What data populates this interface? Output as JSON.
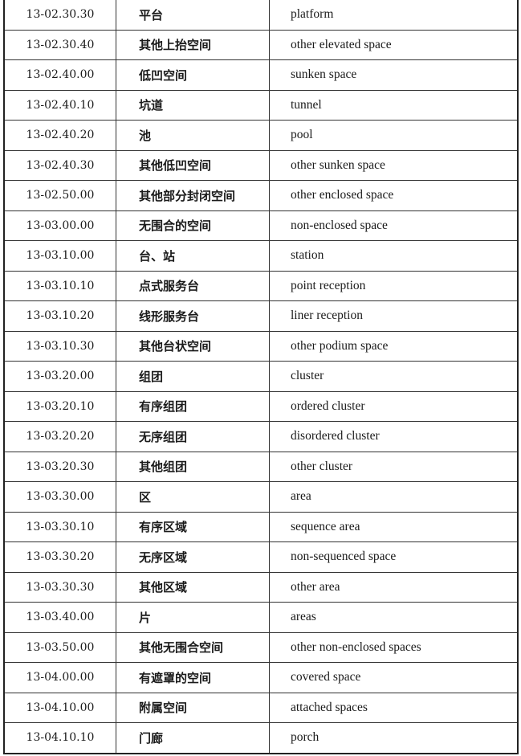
{
  "table": {
    "rows": [
      {
        "code": "13-02.30.30",
        "zh": "平台",
        "en": "platform"
      },
      {
        "code": "13-02.30.40",
        "zh": "其他上抬空间",
        "en": "other elevated space"
      },
      {
        "code": "13-02.40.00",
        "zh": "低凹空间",
        "en": "sunken space"
      },
      {
        "code": "13-02.40.10",
        "zh": "坑道",
        "en": "tunnel"
      },
      {
        "code": "13-02.40.20",
        "zh": "池",
        "en": "pool"
      },
      {
        "code": "13-02.40.30",
        "zh": "其他低凹空间",
        "en": "other sunken space"
      },
      {
        "code": "13-02.50.00",
        "zh": "其他部分封闭空间",
        "en": "other enclosed space"
      },
      {
        "code": "13-03.00.00",
        "zh": "无围合的空间",
        "en": "non-enclosed space"
      },
      {
        "code": "13-03.10.00",
        "zh": "台、站",
        "en": "station"
      },
      {
        "code": "13-03.10.10",
        "zh": "点式服务台",
        "en": "point reception"
      },
      {
        "code": "13-03.10.20",
        "zh": "线形服务台",
        "en": "liner reception"
      },
      {
        "code": "13-03.10.30",
        "zh": "其他台状空间",
        "en": "other podium space"
      },
      {
        "code": "13-03.20.00",
        "zh": "组团",
        "en": "cluster"
      },
      {
        "code": "13-03.20.10",
        "zh": "有序组团",
        "en": "ordered cluster"
      },
      {
        "code": "13-03.20.20",
        "zh": "无序组团",
        "en": "disordered cluster"
      },
      {
        "code": "13-03.20.30",
        "zh": "其他组团",
        "en": "other cluster"
      },
      {
        "code": "13-03.30.00",
        "zh": "区",
        "en": "area"
      },
      {
        "code": "13-03.30.10",
        "zh": "有序区域",
        "en": "sequence area"
      },
      {
        "code": "13-03.30.20",
        "zh": "无序区域",
        "en": "non-sequenced space"
      },
      {
        "code": "13-03.30.30",
        "zh": "其他区域",
        "en": "other area"
      },
      {
        "code": "13-03.40.00",
        "zh": "片",
        "en": "areas"
      },
      {
        "code": "13-03.50.00",
        "zh": "其他无围合空间",
        "en": "other non-enclosed spaces"
      },
      {
        "code": "13-04.00.00",
        "zh": "有遮罩的空间",
        "en": "covered space"
      },
      {
        "code": "13-04.10.00",
        "zh": "附属空间",
        "en": "attached spaces"
      },
      {
        "code": "13-04.10.10",
        "zh": "门廊",
        "en": "porch"
      }
    ]
  }
}
